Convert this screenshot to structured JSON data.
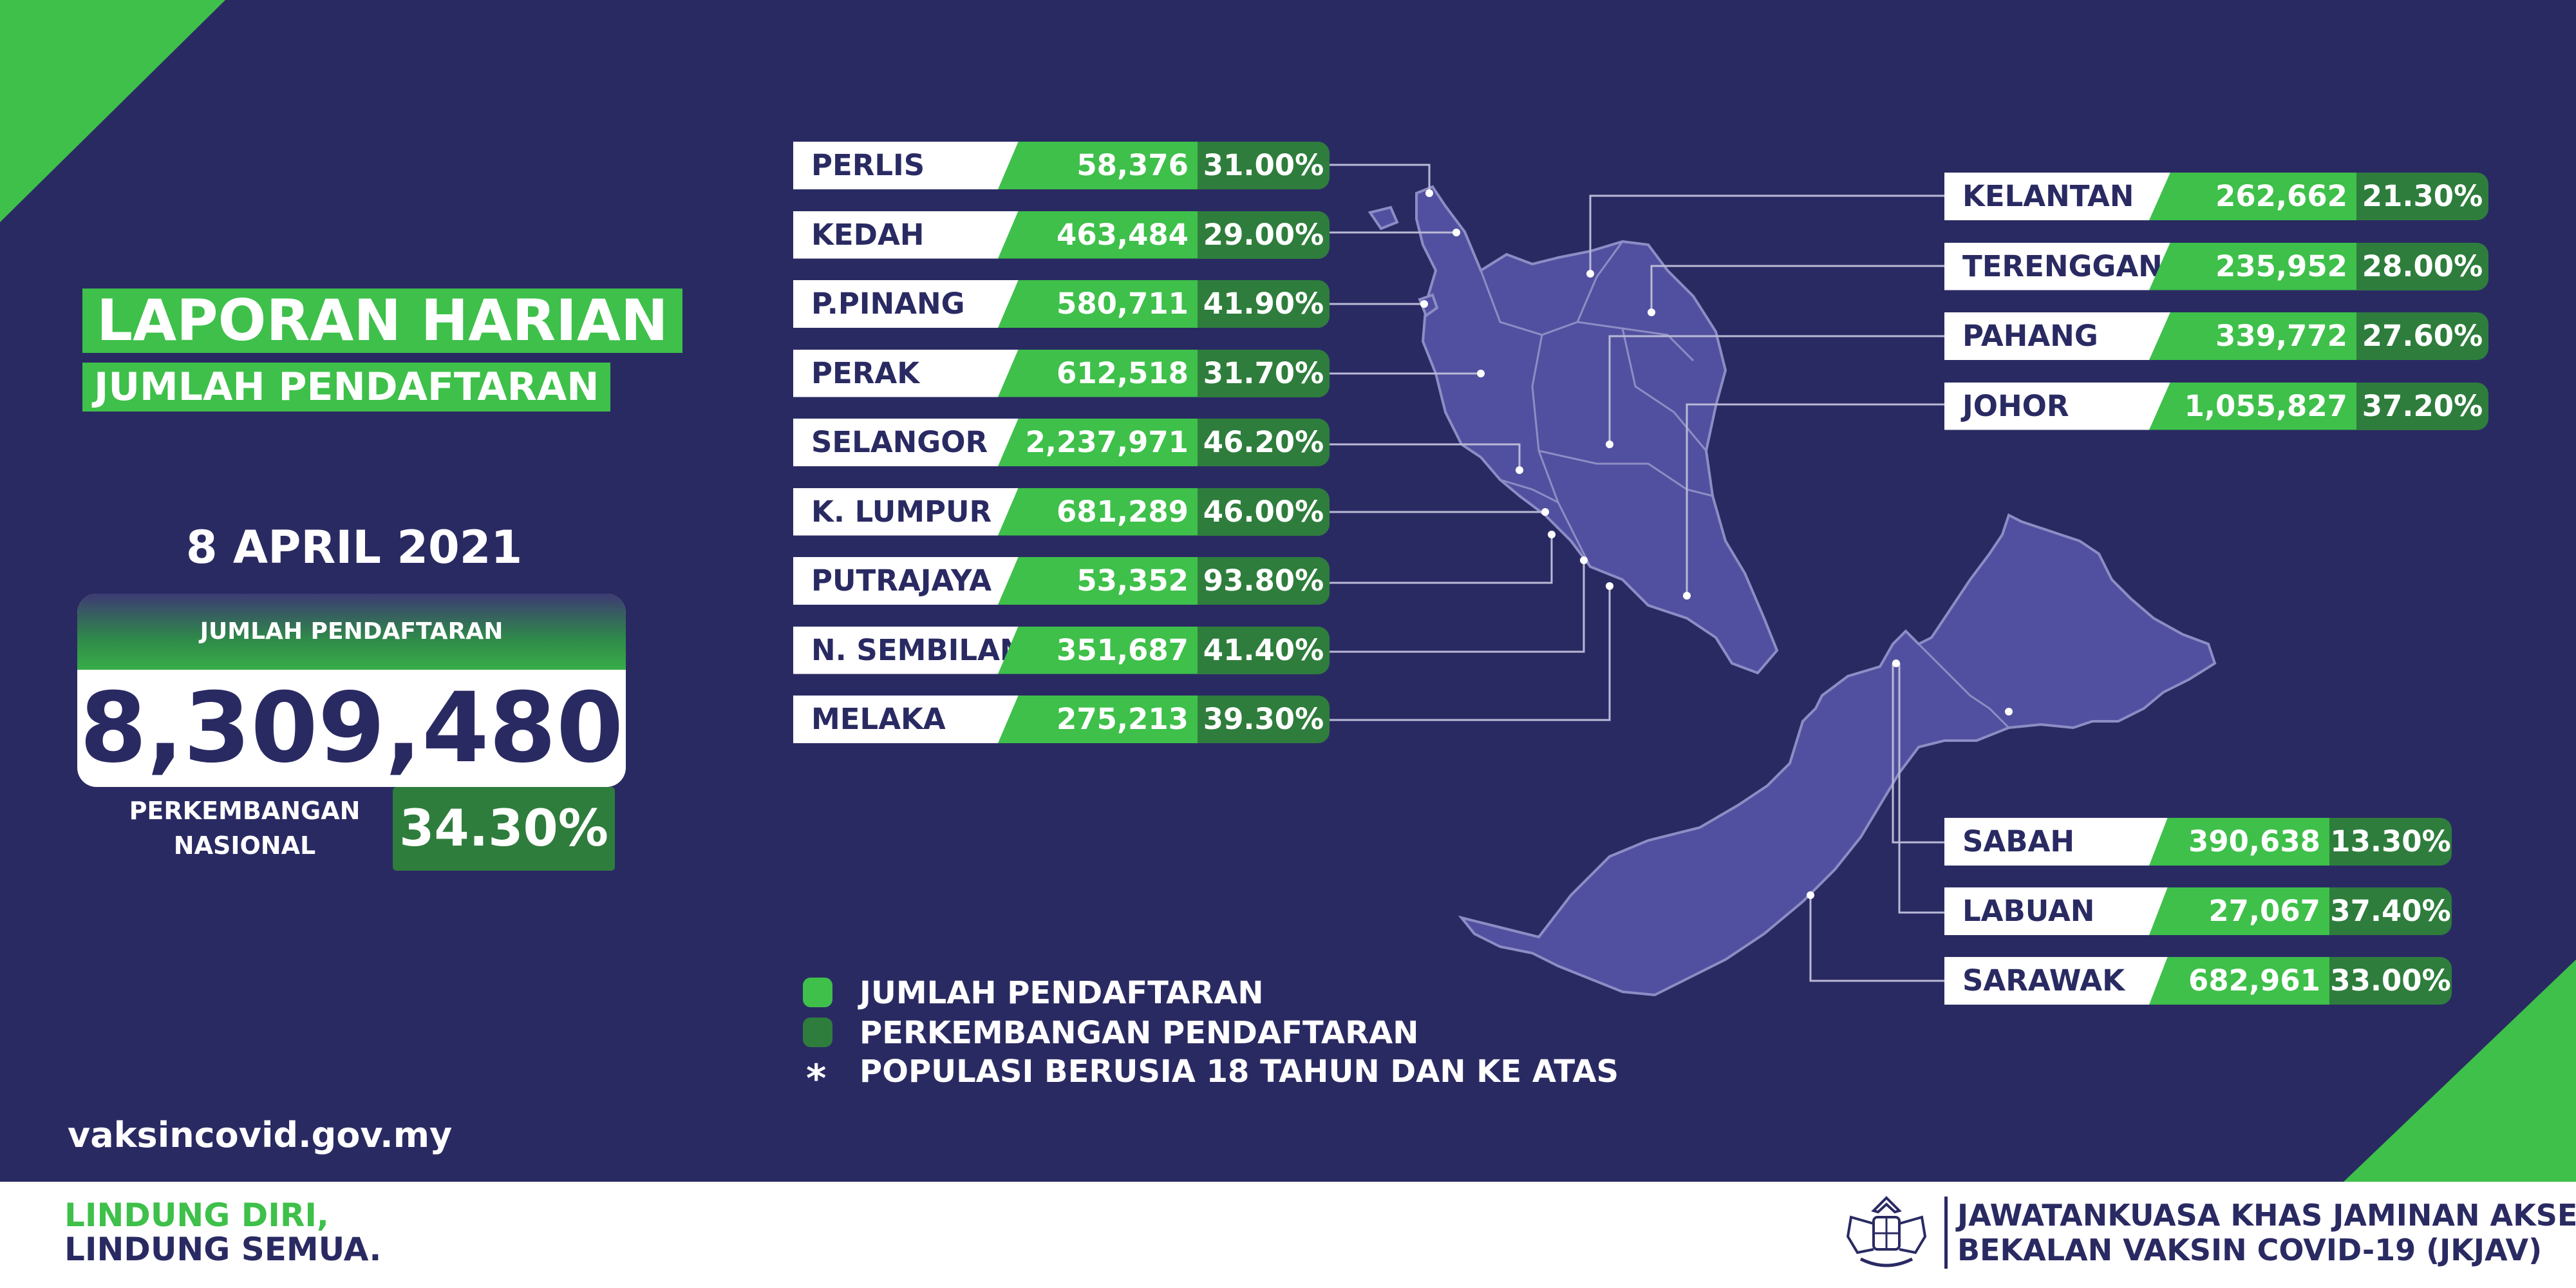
{
  "header": {
    "title_line1": "LAPORAN HARIAN",
    "title_line2": "JUMLAH PENDAFTARAN"
  },
  "report_date": "8 APRIL 2021",
  "national": {
    "total_label": "JUMLAH PENDAFTARAN",
    "total_value": "8,309,480",
    "growth_label_line1": "PERKEMBANGAN",
    "growth_label_line2": "NASIONAL",
    "growth_value": "34.30%"
  },
  "states_left": [
    {
      "name": "PERLIS",
      "registered": "58,376",
      "percent": "31.00%"
    },
    {
      "name": "KEDAH",
      "registered": "463,484",
      "percent": "29.00%"
    },
    {
      "name": "P.PINANG",
      "registered": "580,711",
      "percent": "41.90%"
    },
    {
      "name": "PERAK",
      "registered": "612,518",
      "percent": "31.70%"
    },
    {
      "name": "SELANGOR",
      "registered": "2,237,971",
      "percent": "46.20%"
    },
    {
      "name": "K. LUMPUR",
      "registered": "681,289",
      "percent": "46.00%"
    },
    {
      "name": "PUTRAJAYA",
      "registered": "53,352",
      "percent": "93.80%"
    },
    {
      "name": "N. SEMBILAN",
      "registered": "351,687",
      "percent": "41.40%"
    },
    {
      "name": "MELAKA",
      "registered": "275,213",
      "percent": "39.30%"
    }
  ],
  "states_right_top": [
    {
      "name": "KELANTAN",
      "registered": "262,662",
      "percent": "21.30%"
    },
    {
      "name": "TERENGGANU",
      "registered": "235,952",
      "percent": "28.00%"
    },
    {
      "name": "PAHANG",
      "registered": "339,772",
      "percent": "27.60%"
    },
    {
      "name": "JOHOR",
      "registered": "1,055,827",
      "percent": "37.20%"
    }
  ],
  "states_right_bottom": [
    {
      "name": "SABAH",
      "registered": "390,638",
      "percent": "13.30%"
    },
    {
      "name": "LABUAN",
      "registered": "27,067",
      "percent": "37.40%"
    },
    {
      "name": "SARAWAK",
      "registered": "682,961",
      "percent": "33.00%"
    }
  ],
  "legend": {
    "registration": "JUMLAH PENDAFTARAN",
    "growth": "PERKEMBANGAN PENDAFTARAN",
    "note_symbol": "*",
    "note": "POPULASI BERUSIA 18 TAHUN DAN KE ATAS"
  },
  "website": "vaksincovid.gov.my",
  "footer": {
    "slogan_line1": "LINDUNG DIRI,",
    "slogan_line2": "LINDUNG SEMUA.",
    "org_line1": "JAWATANKUASA KHAS JAMINAN AKSES",
    "org_line2": "BEKALAN VAKSIN COVID-19 (JKJAV)"
  },
  "colors": {
    "background": "#2a2a63",
    "registration_green": "#3ec04a",
    "growth_green": "#2e7d3c",
    "map_fill": "#5150a0"
  }
}
